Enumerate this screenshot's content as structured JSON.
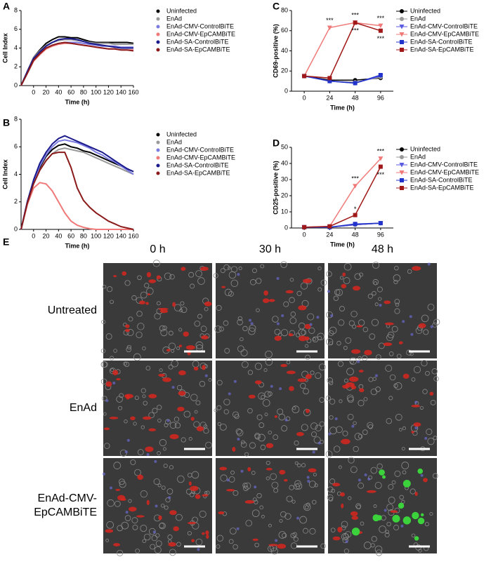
{
  "chart_data": [
    {
      "type": "line",
      "panel": "A",
      "xlabel": "Time (h)",
      "ylabel": "Cell Index",
      "x": [
        -20,
        -10,
        0,
        10,
        20,
        30,
        40,
        50,
        60,
        70,
        80,
        90,
        100,
        110,
        120,
        130,
        140,
        150,
        160
      ],
      "xlim": [
        -20,
        160
      ],
      "xticks": [
        0,
        20,
        40,
        60,
        80,
        100,
        120,
        140,
        160
      ],
      "ylim": [
        0,
        8
      ],
      "yticks": [
        0,
        2,
        4,
        6,
        8
      ],
      "series": [
        {
          "name": "Uninfected",
          "color": "#000000",
          "values": [
            0,
            1.5,
            3,
            3.8,
            4.5,
            4.9,
            5.2,
            5.2,
            5.1,
            5.1,
            4.9,
            4.7,
            4.6,
            4.6,
            4.6,
            4.6,
            4.6,
            4.6,
            4.5
          ]
        },
        {
          "name": "EnAd",
          "color": "#999999",
          "values": [
            0,
            1.5,
            3,
            3.7,
            4.3,
            4.6,
            4.8,
            4.9,
            4.9,
            4.8,
            4.7,
            4.6,
            4.5,
            4.5,
            4.5,
            4.4,
            4.4,
            4.4,
            4.4
          ]
        },
        {
          "name": "EnAd-CMV-ControlBiTE",
          "color": "#7b7be0",
          "values": [
            0,
            1.4,
            2.8,
            3.5,
            4,
            4.3,
            4.5,
            4.6,
            4.6,
            4.6,
            4.5,
            4.4,
            4.3,
            4.2,
            4.2,
            4.2,
            4.1,
            4.1,
            4.1
          ]
        },
        {
          "name": "EnAd-CMV-EpCAMBiTE",
          "color": "#f07a7a",
          "values": [
            0,
            1.3,
            2.6,
            3.3,
            3.9,
            4.2,
            4.4,
            4.5,
            4.5,
            4.4,
            4.3,
            4.2,
            4.1,
            4,
            3.9,
            3.9,
            3.8,
            3.8,
            3.8
          ]
        },
        {
          "name": "EnAd-SA-ControlBiTE",
          "color": "#1a1a8c",
          "values": [
            0,
            1.5,
            2.9,
            3.6,
            4.2,
            4.6,
            4.9,
            5,
            5,
            4.9,
            4.7,
            4.5,
            4.4,
            4.3,
            4.2,
            4.1,
            4,
            4,
            4
          ]
        },
        {
          "name": "EnAd-SA-EpCAMBiTE",
          "color": "#8b1a1a",
          "values": [
            0,
            1.3,
            2.7,
            3.4,
            4,
            4.3,
            4.5,
            4.6,
            4.5,
            4.4,
            4.3,
            4.2,
            4.1,
            4,
            3.9,
            3.9,
            3.8,
            3.8,
            3.7
          ]
        }
      ]
    },
    {
      "type": "line",
      "panel": "B",
      "xlabel": "Time (h)",
      "ylabel": "Cell Index",
      "x": [
        -20,
        -10,
        0,
        10,
        20,
        30,
        40,
        50,
        60,
        70,
        80,
        90,
        100,
        110,
        120,
        130,
        140,
        150,
        160
      ],
      "xlim": [
        -20,
        160
      ],
      "xticks": [
        0,
        20,
        40,
        60,
        80,
        100,
        120,
        140,
        160
      ],
      "ylim": [
        0,
        8
      ],
      "yticks": [
        0,
        2,
        4,
        6,
        8
      ],
      "series": [
        {
          "name": "Uninfected",
          "color": "#000000",
          "values": [
            0,
            2,
            3.5,
            4.5,
            5.3,
            5.8,
            6.1,
            6.2,
            6,
            5.9,
            5.7,
            5.6,
            5.4,
            5.2,
            5,
            4.8,
            4.6,
            4.4,
            4.2
          ]
        },
        {
          "name": "EnAd",
          "color": "#999999",
          "values": [
            0,
            2,
            3.4,
            4.3,
            5,
            5.5,
            5.8,
            5.9,
            5.8,
            5.7,
            5.6,
            5.4,
            5.2,
            5,
            4.8,
            4.6,
            4.4,
            4.2,
            4
          ]
        },
        {
          "name": "EnAd-CMV-ControlBiTE",
          "color": "#7b7be0",
          "values": [
            0,
            2,
            3.5,
            4.6,
            5.4,
            6,
            6.4,
            6.5,
            6.4,
            6.3,
            6.1,
            5.9,
            5.6,
            5.4,
            5.1,
            4.9,
            4.6,
            4.3,
            4
          ]
        },
        {
          "name": "EnAd-CMV-EpCAMBiTE",
          "color": "#f07a7a",
          "values": [
            0,
            1.8,
            3,
            3.4,
            3.3,
            2.8,
            2,
            1.2,
            0.6,
            0.3,
            0.15,
            0.05,
            0,
            0,
            0,
            0,
            0,
            0,
            0
          ]
        },
        {
          "name": "EnAd-SA-ControlBiTE",
          "color": "#1a1a8c",
          "values": [
            0,
            2,
            3.6,
            4.8,
            5.6,
            6.2,
            6.6,
            6.8,
            6.6,
            6.4,
            6.2,
            6,
            5.8,
            5.6,
            5.3,
            5,
            4.7,
            4.4,
            4.2
          ]
        },
        {
          "name": "EnAd-SA-EpCAMBiTE",
          "color": "#8b1a1a",
          "values": [
            0,
            1.9,
            3.3,
            4.3,
            5,
            5.5,
            5.6,
            5.6,
            4.5,
            3,
            2.1,
            1.6,
            1.2,
            0.9,
            0.6,
            0.4,
            0.2,
            0.1,
            0
          ]
        }
      ]
    },
    {
      "type": "dotline",
      "panel": "C",
      "xlabel": "Time (h)",
      "ylabel": "CD69-positive (%)",
      "categories": [
        "0",
        "24",
        "48",
        "96"
      ],
      "ylim": [
        0,
        80
      ],
      "yticks": [
        0,
        20,
        40,
        60,
        80
      ],
      "annotations": [
        "***",
        "***",
        "***",
        "***",
        "***"
      ],
      "series": [
        {
          "name": "Uninfected",
          "color": "#000000",
          "marker": "circle",
          "values": [
            15,
            11,
            11,
            13
          ]
        },
        {
          "name": "EnAd",
          "color": "#999999",
          "marker": "circle",
          "values": [
            15,
            10,
            9,
            14
          ]
        },
        {
          "name": "EnAd-CMV-ControlBiTE",
          "color": "#5a5ae0",
          "marker": "tri",
          "values": [
            15,
            10,
            8,
            15
          ]
        },
        {
          "name": "EnAd-CMV-EpCAMBiTE",
          "color": "#f07a7a",
          "marker": "tri",
          "values": [
            15,
            63,
            68,
            65
          ]
        },
        {
          "name": "EnAd-SA-ControlBiTE",
          "color": "#2233cc",
          "marker": "square",
          "values": [
            15,
            10,
            8,
            16
          ]
        },
        {
          "name": "EnAd-SA-EpCAMBiTE",
          "color": "#a01818",
          "marker": "square",
          "values": [
            15,
            13,
            68,
            60
          ]
        }
      ]
    },
    {
      "type": "dotline",
      "panel": "D",
      "xlabel": "Time (h)",
      "ylabel": "CD25-positive (%)",
      "categories": [
        "0",
        "24",
        "48",
        "96"
      ],
      "ylim": [
        0,
        50
      ],
      "yticks": [
        0,
        10,
        20,
        30,
        40,
        50
      ],
      "annotations": [
        "***",
        "*",
        "***",
        "***"
      ],
      "series": [
        {
          "name": "Uninfected",
          "color": "#000000",
          "marker": "circle",
          "values": [
            0.5,
            0.5,
            2,
            3
          ]
        },
        {
          "name": "EnAd",
          "color": "#999999",
          "marker": "circle",
          "values": [
            0.5,
            0.5,
            2,
            3
          ]
        },
        {
          "name": "EnAd-CMV-ControlBiTE",
          "color": "#5a5ae0",
          "marker": "tri",
          "values": [
            0.5,
            0.5,
            2,
            3
          ]
        },
        {
          "name": "EnAd-CMV-EpCAMBiTE",
          "color": "#f07a7a",
          "marker": "tri",
          "values": [
            0.5,
            1,
            26,
            43
          ]
        },
        {
          "name": "EnAd-SA-ControlBiTE",
          "color": "#2233cc",
          "marker": "square",
          "values": [
            0.5,
            0.5,
            2.5,
            3
          ]
        },
        {
          "name": "EnAd-SA-EpCAMBiTE",
          "color": "#a01818",
          "marker": "square",
          "values": [
            0.5,
            1,
            8,
            38
          ]
        }
      ]
    }
  ],
  "panel_e": {
    "panel": "E",
    "columns": [
      "0 h",
      "30 h",
      "48 h"
    ],
    "rows": [
      [
        "Untreated"
      ],
      [
        "EnAd"
      ],
      [
        "EnAd-CMV-",
        "EpCAMBiTE"
      ]
    ]
  }
}
